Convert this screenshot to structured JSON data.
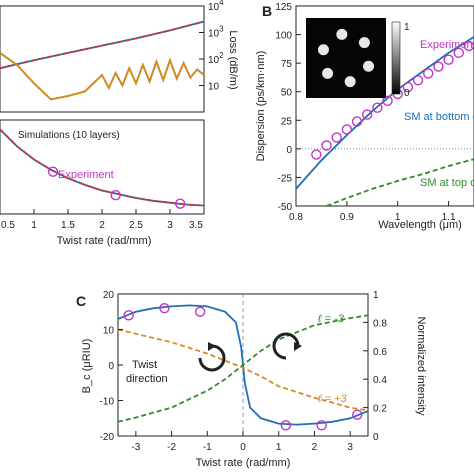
{
  "colors": {
    "blue": "#1f6fb5",
    "red_dash": "#d3312b",
    "green": "#2e8b2e",
    "orange": "#d98a1f",
    "magenta": "#c034c6",
    "gray": "#8a8a8a",
    "axis": "#222222"
  },
  "chart_data": [
    {
      "panel": "A-top",
      "type": "line",
      "xlabel": "",
      "ylabel": "Loss (dB/m)",
      "y_scale": "log",
      "xlim": [
        0.5,
        3.5
      ],
      "ylim": [
        1,
        10000
      ],
      "x_ticks": [],
      "y_tick_labels": [
        "10",
        "10^2",
        "10^3",
        "10^4"
      ],
      "y_tick_values": [
        10,
        100,
        1000,
        10000
      ],
      "series": [
        {
          "color": "blue",
          "x": [
            0.5,
            1.0,
            1.5,
            2.0,
            2.5,
            3.0,
            3.5
          ],
          "y": [
            45,
            90,
            170,
            320,
            600,
            1200,
            2600
          ]
        },
        {
          "color": "red_dash",
          "x": [
            0.5,
            1.0,
            1.5,
            2.0,
            2.5,
            3.0,
            3.5
          ],
          "y": [
            45,
            90,
            170,
            320,
            600,
            1200,
            2600
          ]
        },
        {
          "color": "green",
          "x": [
            0.5,
            0.75,
            1.0,
            1.25,
            1.5,
            1.75,
            2.0,
            2.1,
            2.2,
            2.3,
            2.4,
            2.5,
            2.6,
            2.7,
            2.8,
            2.9,
            3.0,
            3.1,
            3.2,
            3.3,
            3.4,
            3.5
          ],
          "y": [
            170,
            60,
            12,
            3,
            4,
            6,
            25,
            8,
            30,
            10,
            45,
            12,
            60,
            14,
            80,
            16,
            90,
            18,
            70,
            20,
            40,
            25
          ]
        },
        {
          "color": "orange",
          "x": [
            0.5,
            0.75,
            1.0,
            1.25,
            1.5,
            1.75,
            2.0,
            2.1,
            2.2,
            2.3,
            2.4,
            2.5,
            2.6,
            2.7,
            2.8,
            2.9,
            3.0,
            3.1,
            3.2,
            3.3,
            3.4,
            3.5
          ],
          "y": [
            170,
            60,
            12,
            3,
            4,
            6,
            25,
            8,
            30,
            10,
            45,
            12,
            60,
            14,
            80,
            16,
            90,
            18,
            70,
            20,
            40,
            25
          ]
        }
      ]
    },
    {
      "panel": "A-bottom",
      "type": "line",
      "xlabel": "Twist rate (rad/mm)",
      "ylabel": "",
      "xlim": [
        0.5,
        3.5
      ],
      "ylim": [
        0,
        1
      ],
      "x_tick_labels": [
        "0.5",
        "1",
        "1.5",
        "2",
        "2.5",
        "3",
        "3.5"
      ],
      "x_tick_values": [
        0.5,
        1,
        1.5,
        2,
        2.5,
        3,
        3.5
      ],
      "annotations": [
        "Simulations (10 layers)"
      ],
      "series": [
        {
          "color": "blue",
          "x": [
            0.5,
            0.75,
            1.0,
            1.25,
            1.5,
            1.75,
            2.0,
            2.25,
            2.5,
            2.75,
            3.0,
            3.25,
            3.5
          ],
          "y": [
            0.9,
            0.72,
            0.58,
            0.47,
            0.38,
            0.31,
            0.25,
            0.21,
            0.17,
            0.14,
            0.12,
            0.1,
            0.09
          ]
        },
        {
          "color": "red_dash",
          "x": [
            0.5,
            0.75,
            1.0,
            1.25,
            1.5,
            1.75,
            2.0,
            2.25,
            2.5,
            2.75,
            3.0,
            3.25,
            3.5
          ],
          "y": [
            0.9,
            0.72,
            0.58,
            0.47,
            0.38,
            0.31,
            0.25,
            0.21,
            0.17,
            0.14,
            0.12,
            0.1,
            0.09
          ]
        },
        {
          "name": "Experiment",
          "color": "magenta",
          "marker": "circle",
          "x": [
            1.28,
            2.2,
            3.15
          ],
          "y": [
            0.45,
            0.2,
            0.11
          ]
        }
      ]
    },
    {
      "panel": "B",
      "type": "line",
      "label": "B",
      "xlabel": "Wavelength (μm)",
      "ylabel": "Dispersion (ps/km·nm)",
      "xlim": [
        0.8,
        1.15
      ],
      "ylim": [
        -50,
        125
      ],
      "x_tick_labels": [
        "0.8",
        "0.9",
        "1",
        "1.1"
      ],
      "x_tick_values": [
        0.8,
        0.9,
        1.0,
        1.1
      ],
      "y_tick_labels": [
        "-50",
        "-25",
        "0",
        "25",
        "50",
        "75",
        "100",
        "125"
      ],
      "y_tick_values": [
        -50,
        -25,
        0,
        25,
        50,
        75,
        100,
        125
      ],
      "colorbar_labels": [
        "1",
        "0"
      ],
      "annotations": [
        "Experiment",
        "SM at bottom of passband",
        "SM at top of passband"
      ],
      "series": [
        {
          "color": "blue",
          "x": [
            0.8,
            0.85,
            0.9,
            0.95,
            1.0,
            1.05,
            1.1,
            1.15
          ],
          "y": [
            -35,
            -10,
            12,
            33,
            52,
            68,
            84,
            98
          ]
        },
        {
          "color": "green",
          "dash": true,
          "x": [
            0.86,
            0.9,
            0.95,
            1.0,
            1.05,
            1.1,
            1.15
          ],
          "y": [
            -50,
            -43,
            -35,
            -28,
            -22,
            -15,
            -9
          ]
        },
        {
          "name": "Experiment",
          "color": "magenta",
          "marker": "circle",
          "x": [
            0.84,
            0.86,
            0.88,
            0.9,
            0.92,
            0.94,
            0.96,
            0.98,
            1.0,
            1.02,
            1.04,
            1.06,
            1.08,
            1.1,
            1.12,
            1.14
          ],
          "y": [
            -5,
            3,
            10,
            17,
            24,
            30,
            36,
            42,
            48,
            54,
            60,
            66,
            72,
            78,
            84,
            90
          ]
        }
      ]
    },
    {
      "panel": "C",
      "type": "line",
      "label": "C",
      "xlabel": "Twist rate (rad/mm)",
      "ylabel": "B_c (μRIU)",
      "y2label": "Normalized intensity",
      "xlim": [
        -3.5,
        3.5
      ],
      "ylim": [
        -20,
        20
      ],
      "y2lim": [
        0,
        1
      ],
      "x_tick_labels": [
        "-3",
        "-2",
        "-1",
        "0",
        "1",
        "2",
        "3"
      ],
      "x_tick_values": [
        -3,
        -2,
        -1,
        0,
        1,
        2,
        3
      ],
      "y_tick_labels": [
        "-20",
        "-10",
        "0",
        "10",
        "20"
      ],
      "y_tick_values": [
        -20,
        -10,
        0,
        10,
        20
      ],
      "y2_tick_labels": [
        "0",
        "0.2",
        "0.4",
        "0.6",
        "0.8",
        "1"
      ],
      "y2_tick_values": [
        0,
        0.2,
        0.4,
        0.6,
        0.8,
        1
      ],
      "annotations": [
        "Twist direction",
        "ℓ = -3",
        "ℓ = +3"
      ],
      "series": [
        {
          "color": "blue",
          "x": [
            -3.5,
            -3,
            -2.5,
            -2,
            -1.5,
            -1,
            -0.5,
            -0.2,
            -0.05,
            0,
            0.05,
            0.2,
            0.5,
            1,
            1.5,
            2,
            2.5,
            3,
            3.5
          ],
          "y": [
            13,
            15,
            16,
            16.5,
            16.8,
            16.5,
            15,
            12,
            5,
            0,
            -5,
            -12,
            -15,
            -16.5,
            -16.8,
            -16.5,
            -16,
            -15,
            -13
          ]
        },
        {
          "name": "Experiment",
          "color": "magenta",
          "marker": "circle",
          "x": [
            -3.2,
            -2.2,
            -1.2,
            1.2,
            2.2,
            3.2
          ],
          "y": [
            14,
            16,
            15,
            -17,
            -17,
            -14
          ]
        },
        {
          "name": "ℓ = -3",
          "color": "green",
          "dash": true,
          "axis": "y2",
          "x": [
            -3.5,
            -3,
            -2,
            -1,
            -0.5,
            0,
            0.5,
            1,
            2,
            3,
            3.5
          ],
          "y": [
            0.1,
            0.13,
            0.2,
            0.32,
            0.4,
            0.5,
            0.6,
            0.68,
            0.78,
            0.83,
            0.85
          ]
        },
        {
          "name": "ℓ = +3",
          "color": "orange",
          "dash": true,
          "axis": "y2",
          "x": [
            -3.5,
            -3,
            -2,
            -1,
            -0.5,
            0,
            0.5,
            1,
            2,
            3,
            3.5
          ],
          "y": [
            0.75,
            0.72,
            0.66,
            0.58,
            0.53,
            0.48,
            0.42,
            0.35,
            0.27,
            0.2,
            0.18
          ]
        }
      ]
    }
  ]
}
